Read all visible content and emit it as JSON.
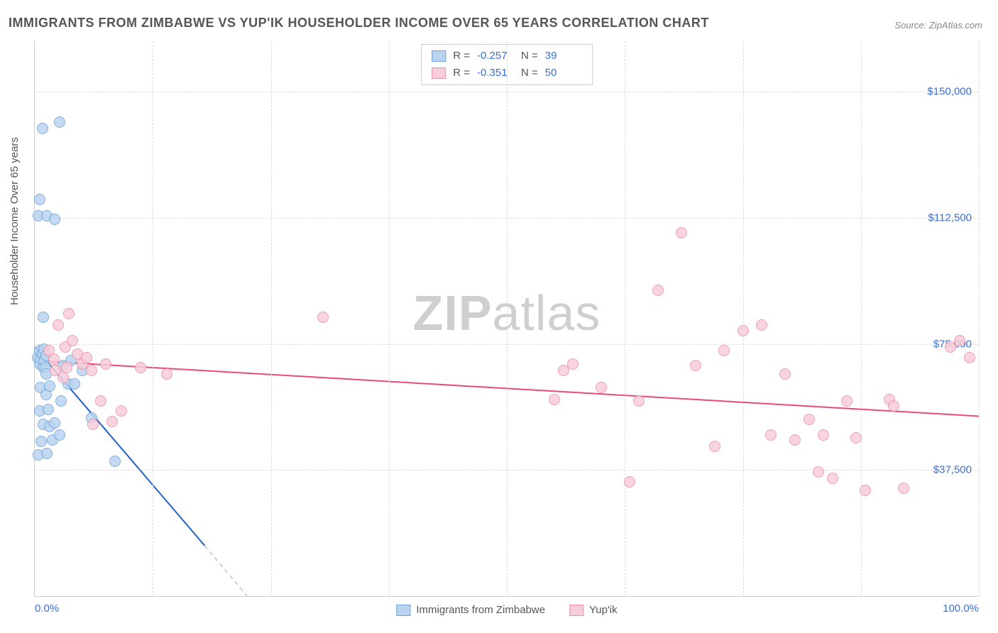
{
  "title": "IMMIGRANTS FROM ZIMBABWE VS YUP'IK HOUSEHOLDER INCOME OVER 65 YEARS CORRELATION CHART",
  "source": "Source: ZipAtlas.com",
  "watermark_a": "ZIP",
  "watermark_b": "atlas",
  "chart": {
    "type": "scatter",
    "xlim": [
      0,
      100
    ],
    "ylim": [
      0,
      165000
    ],
    "xlabel_min": "0.0%",
    "xlabel_max": "100.0%",
    "ylabel": "Householder Income Over 65 years",
    "yticks": [
      {
        "v": 37500,
        "label": "$37,500"
      },
      {
        "v": 75000,
        "label": "$75,000"
      },
      {
        "v": 112500,
        "label": "$112,500"
      },
      {
        "v": 150000,
        "label": "$150,000"
      }
    ],
    "xgrid": [
      12.5,
      25,
      37.5,
      50,
      62.5,
      75,
      87.5,
      100
    ],
    "grid_color": "#dddddd",
    "axis_color": "#cccccc",
    "tick_color": "#3b6fd6",
    "label_color": "#555555",
    "label_fontsize": 15,
    "title_fontsize": 18,
    "background_color": "#ffffff",
    "marker_size": 16,
    "series": [
      {
        "name": "Immigrants from Zimbabwe",
        "legend_label": "Immigrants from Zimbabwe",
        "fill": "#b9d4f0",
        "stroke": "#6fa3d9",
        "stroke_opacity": 0.9,
        "line_color": "#1f5fc4",
        "line_width": 2,
        "R_label": "R =",
        "R": "-0.257",
        "N_label": "N =",
        "N": "39",
        "trend": {
          "x1": 0,
          "y1": 74000,
          "x2": 18,
          "y2": 15000
        },
        "trend_dash": {
          "x1": 18,
          "y1": 15000,
          "x2": 22.5,
          "y2": 0
        },
        "points": [
          [
            0.3,
            71000
          ],
          [
            0.5,
            73000
          ],
          [
            0.5,
            69000
          ],
          [
            0.6,
            70500
          ],
          [
            0.8,
            72000
          ],
          [
            0.9,
            68000
          ],
          [
            1.0,
            73500
          ],
          [
            1.0,
            70000
          ],
          [
            1.1,
            68000
          ],
          [
            1.2,
            66000
          ],
          [
            1.2,
            71500
          ],
          [
            0.5,
            118000
          ],
          [
            0.4,
            113000
          ],
          [
            1.3,
            113000
          ],
          [
            2.1,
            112000
          ],
          [
            0.8,
            139000
          ],
          [
            2.6,
            141000
          ],
          [
            0.6,
            62000
          ],
          [
            1.2,
            60000
          ],
          [
            1.6,
            62500
          ],
          [
            0.5,
            55000
          ],
          [
            1.4,
            55500
          ],
          [
            0.9,
            51000
          ],
          [
            1.6,
            50500
          ],
          [
            2.1,
            51500
          ],
          [
            0.7,
            46000
          ],
          [
            1.9,
            46500
          ],
          [
            2.6,
            48000
          ],
          [
            0.4,
            42000
          ],
          [
            1.3,
            42500
          ],
          [
            2.8,
            58000
          ],
          [
            3.0,
            68500
          ],
          [
            3.5,
            63000
          ],
          [
            3.8,
            70000
          ],
          [
            4.2,
            63000
          ],
          [
            5.0,
            67000
          ],
          [
            6.0,
            53000
          ],
          [
            8.5,
            40000
          ],
          [
            0.9,
            83000
          ]
        ]
      },
      {
        "name": "Yup'ik",
        "legend_label": "Yup'ik",
        "fill": "#f7cdd9",
        "stroke": "#eb8fab",
        "stroke_opacity": 0.9,
        "line_color": "#e94b7a",
        "line_width": 2,
        "R_label": "R =",
        "R": "-0.351",
        "N_label": "N =",
        "N": "50",
        "trend": {
          "x1": 0,
          "y1": 70000,
          "x2": 100,
          "y2": 53500
        },
        "points": [
          [
            1.5,
            73000
          ],
          [
            2.0,
            70500
          ],
          [
            2.2,
            67000
          ],
          [
            2.5,
            80500
          ],
          [
            3.0,
            65000
          ],
          [
            3.2,
            74000
          ],
          [
            3.4,
            68000
          ],
          [
            3.6,
            84000
          ],
          [
            4.0,
            76000
          ],
          [
            4.5,
            72000
          ],
          [
            5.0,
            69000
          ],
          [
            5.5,
            71000
          ],
          [
            6.0,
            67000
          ],
          [
            6.2,
            51000
          ],
          [
            7.0,
            58000
          ],
          [
            7.5,
            69000
          ],
          [
            8.2,
            52000
          ],
          [
            9.2,
            55000
          ],
          [
            11.2,
            68000
          ],
          [
            14.0,
            66000
          ],
          [
            30.5,
            83000
          ],
          [
            55.0,
            58500
          ],
          [
            56.0,
            67000
          ],
          [
            57.0,
            69000
          ],
          [
            60.0,
            62000
          ],
          [
            63.0,
            34000
          ],
          [
            64.0,
            58000
          ],
          [
            66.0,
            91000
          ],
          [
            68.5,
            108000
          ],
          [
            70.0,
            68500
          ],
          [
            72.0,
            44500
          ],
          [
            73.0,
            73000
          ],
          [
            75.0,
            79000
          ],
          [
            77.0,
            80500
          ],
          [
            78.0,
            48000
          ],
          [
            79.5,
            66000
          ],
          [
            80.5,
            46500
          ],
          [
            82.0,
            52500
          ],
          [
            83.0,
            37000
          ],
          [
            83.5,
            48000
          ],
          [
            84.5,
            35000
          ],
          [
            86.0,
            58000
          ],
          [
            87.0,
            47000
          ],
          [
            88.0,
            31500
          ],
          [
            90.5,
            58500
          ],
          [
            91.0,
            56500
          ],
          [
            92.0,
            32000
          ],
          [
            97.0,
            74000
          ],
          [
            98.0,
            76000
          ],
          [
            99.0,
            71000
          ]
        ]
      }
    ]
  }
}
